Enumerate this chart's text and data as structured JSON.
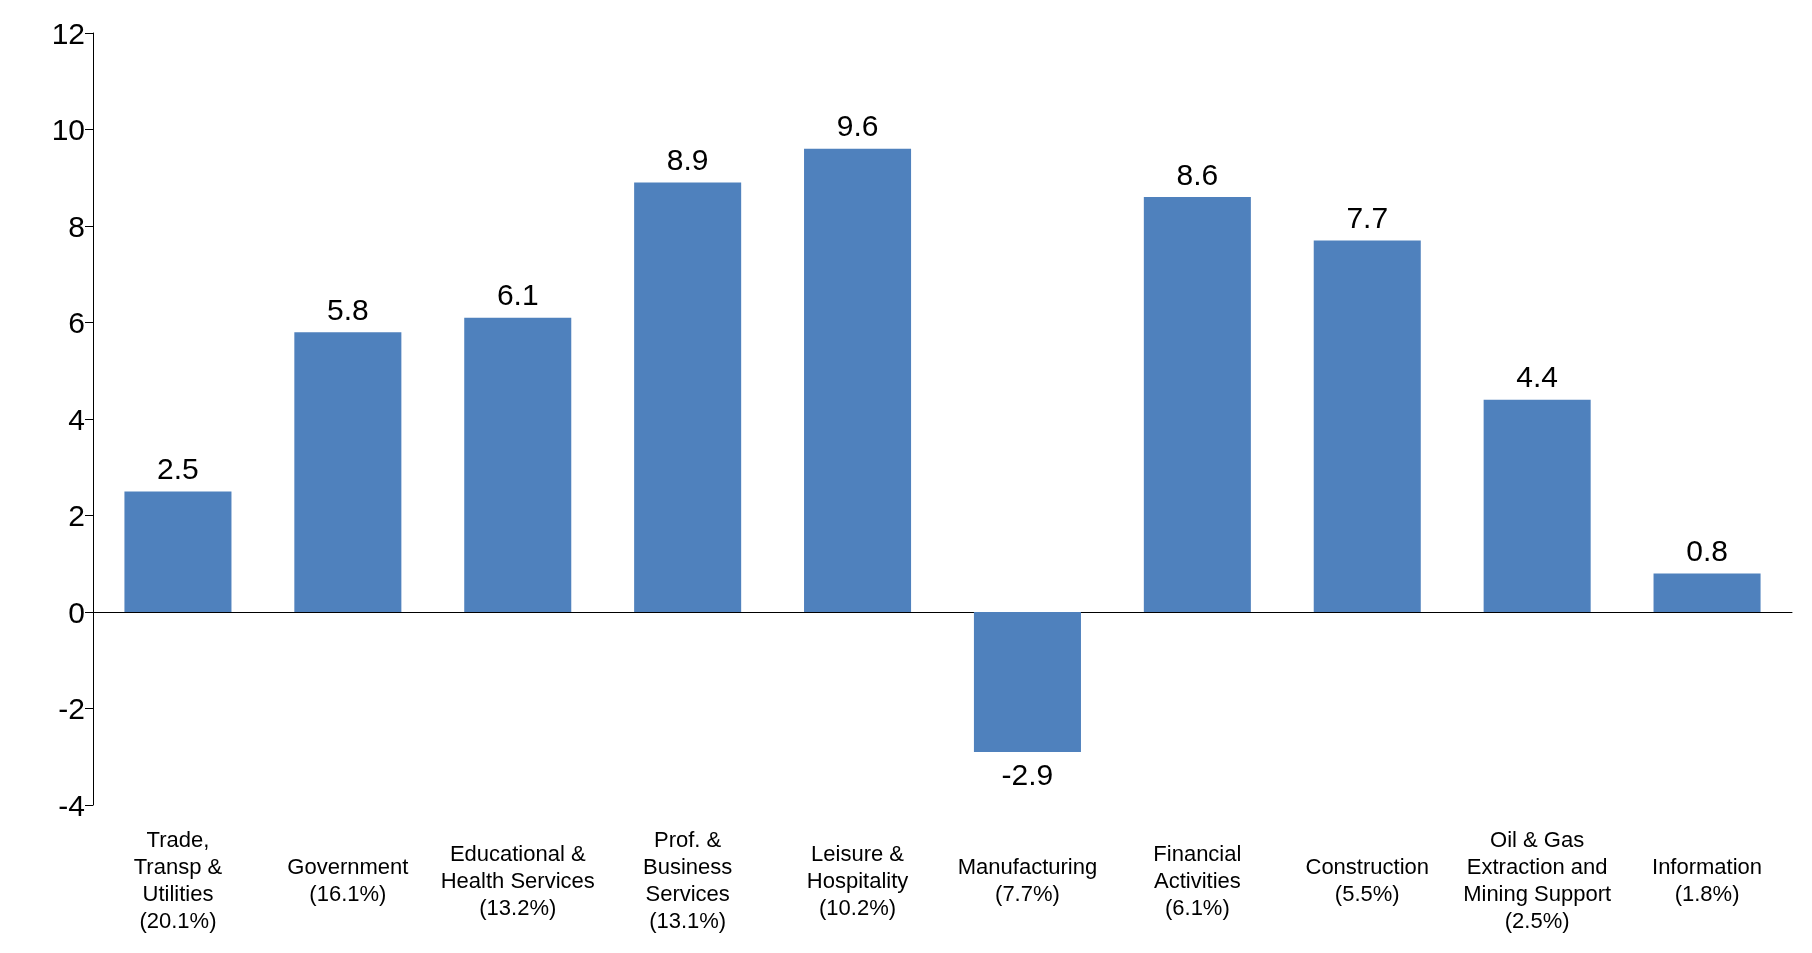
{
  "chart_data": {
    "type": "bar",
    "categories": [
      "Trade,\nTransp &\nUtilities\n(20.1%)",
      "Government\n(16.1%)",
      "Educational &\nHealth Services\n(13.2%)",
      "Prof. &\nBusiness\nServices\n(13.1%)",
      "Leisure &\nHospitality\n(10.2%)",
      "Manufacturing\n(7.7%)",
      "Financial\nActivities\n(6.1%)",
      "Construction\n(5.5%)",
      "Oil & Gas\nExtraction and\nMining Support\n(2.5%)",
      "Information\n(1.8%)"
    ],
    "values": [
      2.5,
      5.8,
      6.1,
      8.9,
      9.6,
      -2.9,
      8.6,
      7.7,
      4.4,
      0.8
    ],
    "color": "#4f81bd",
    "ylim": [
      -4,
      12
    ],
    "yticks": [
      -4,
      -2,
      0,
      2,
      4,
      6,
      8,
      10,
      12
    ],
    "data_labels": true
  }
}
